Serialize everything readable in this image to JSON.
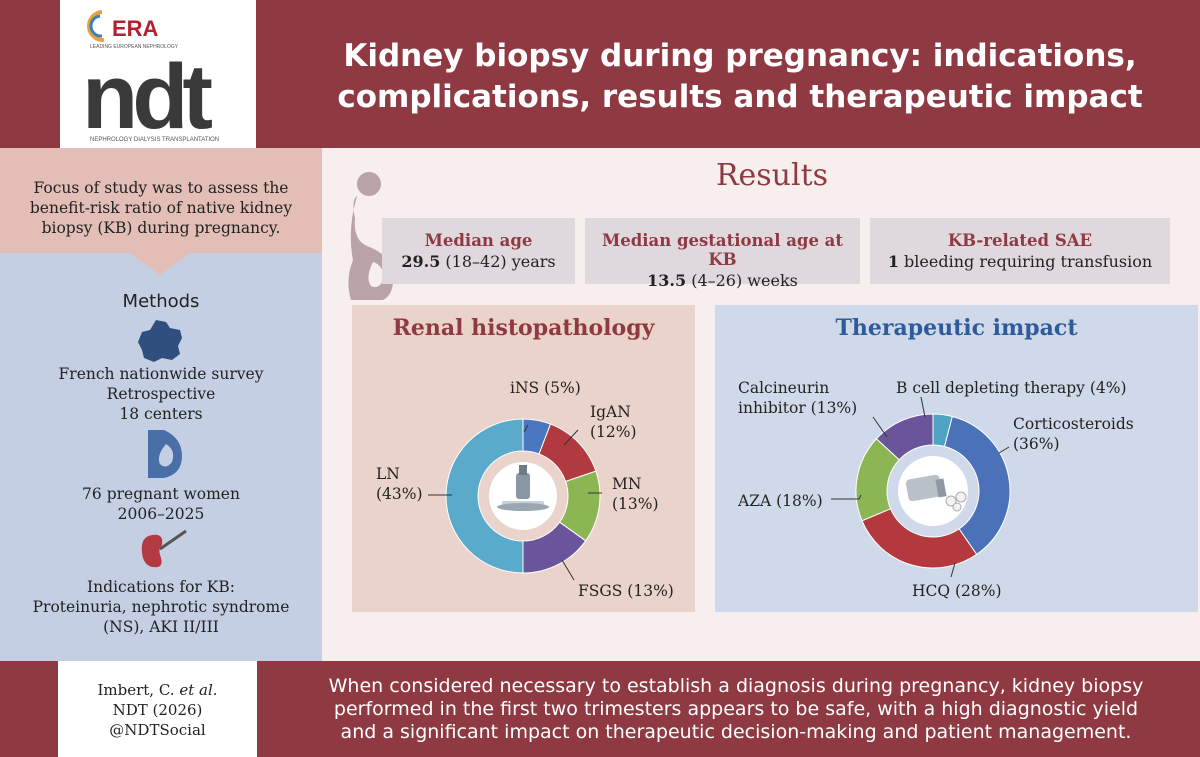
{
  "header": {
    "logo_era": "ERA",
    "logo_era_sub": "LEADING EUROPEAN NEPHROLOGY",
    "logo_ndt": "ndt",
    "logo_ndt_sub": "NEPHROLOGY DIALYSIS TRANSPLANTATION",
    "title_line1": "Kidney biopsy during pregnancy: indications,",
    "title_line2": "complications, results and therapeutic impact"
  },
  "left": {
    "focus_line1": "Focus of study was to assess the",
    "focus_line2": "benefit-risk ratio of native kidney",
    "focus_line3": "biopsy (KB) during pregnancy.",
    "methods_title": "Methods",
    "survey_line1": "French nationwide survey",
    "survey_line2": "Retrospective",
    "survey_line3": "18 centers",
    "women_line1": "76 pregnant women",
    "women_line2": "2006–2025",
    "ind_line1": "Indications for KB:",
    "ind_line2": "Proteinuria, nephrotic syndrome",
    "ind_line3": "(NS), AKI II/III"
  },
  "results": {
    "title": "Results",
    "stats": [
      {
        "heading": "Median age",
        "value_bold": "29.5",
        "value_rest": " (18–42) years"
      },
      {
        "heading": "Median gestational age at KB",
        "value_bold": "13.5",
        "value_rest": " (4–26) weeks"
      },
      {
        "heading": "KB-related SAE",
        "value_bold": "1",
        "value_rest": " bleeding requiring transfusion"
      }
    ]
  },
  "chart_data": [
    {
      "type": "pie",
      "title": "Renal histopathology",
      "categories": [
        "iNS",
        "IgAN",
        "MN",
        "FSGS",
        "LN"
      ],
      "values": [
        5,
        12,
        13,
        13,
        43
      ],
      "labels": [
        "iNS (5%)",
        "IgAN (12%)",
        "MN (13%)",
        "FSGS (13%)",
        "LN (43%)"
      ],
      "colors": [
        "#4a78bf",
        "#b13a40",
        "#8cb554",
        "#6a559b",
        "#5aaacc"
      ]
    },
    {
      "type": "pie",
      "title": "Therapeutic impact",
      "categories": [
        "B cell depleting therapy",
        "Corticosteroids",
        "HCQ",
        "AZA",
        "Calcineurin inhibitor"
      ],
      "values": [
        4,
        36,
        28,
        18,
        13
      ],
      "labels": [
        "B cell depleting therapy (4%)",
        "Corticosteroids (36%)",
        "HCQ (28%)",
        "AZA (18%)",
        "Calcineurin inhibitor (13%)"
      ],
      "colors": [
        "#4fa4c4",
        "#4b72b8",
        "#b3393f",
        "#8cb554",
        "#6a559b"
      ]
    }
  ],
  "histo_labels": {
    "ins": "iNS (5%)",
    "igan_1": "IgAN",
    "igan_2": "(12%)",
    "mn_1": "MN",
    "mn_2": "(13%)",
    "fsgs": "FSGS (13%)",
    "ln_1": "LN",
    "ln_2": "(43%)"
  },
  "thera_labels": {
    "cni_1": "Calcineurin",
    "cni_2": "inhibitor (13%)",
    "bcell": "B cell depleting therapy (4%)",
    "cort_1": "Corticosteroids",
    "cort_2": "(36%)",
    "aza": "AZA (18%)",
    "hcq": "HCQ (28%)"
  },
  "footer": {
    "cite_author": "Imbert, C.",
    "cite_etal": " et al.",
    "cite_journal": "NDT (2026)",
    "cite_handle": "@NDTSocial",
    "conclusion_line1": "When considered necessary to establish a diagnosis during pregnancy, kidney biopsy",
    "conclusion_line2": "performed in the first two trimesters appears to be safe, with a high diagnostic yield",
    "conclusion_line3": "and a significant impact on therapeutic decision-making and patient management."
  },
  "colors": {
    "brand_red": "#8f3a42",
    "panel_blue": "#c5cfe3",
    "panel_pink": "#e2beb6",
    "title_blue": "#2e5b9a"
  },
  "icons": [
    "pregnant-silhouette-icon",
    "france-map-icon",
    "pregnant-belly-icon",
    "kidney-biopsy-icon",
    "microscope-icon",
    "pill-bottle-icon"
  ]
}
